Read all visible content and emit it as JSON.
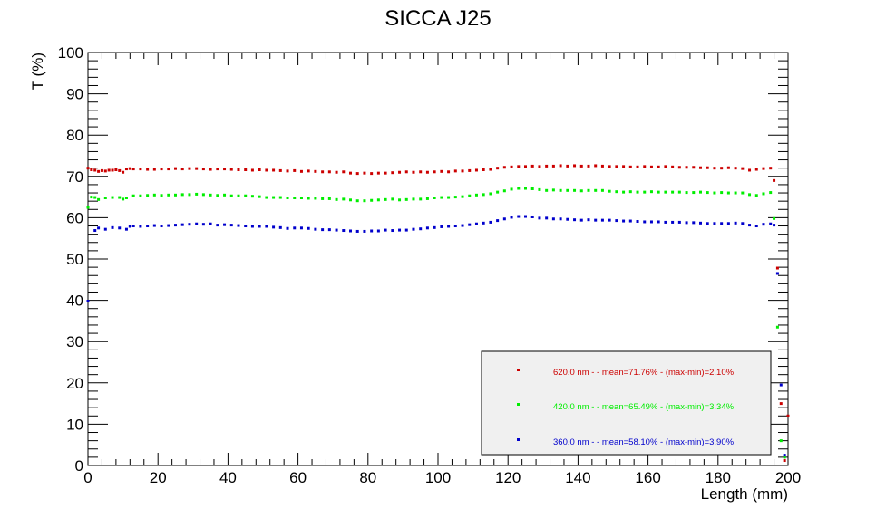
{
  "chart_data": {
    "type": "scatter",
    "title": "SICCA J25",
    "xlabel": "Length (mm)",
    "ylabel": "T (%)",
    "xlim": [
      0,
      200
    ],
    "ylim": [
      0,
      100
    ],
    "xticks": [
      0,
      20,
      40,
      60,
      80,
      100,
      120,
      140,
      160,
      180,
      200
    ],
    "yticks": [
      0,
      10,
      20,
      30,
      40,
      50,
      60,
      70,
      80,
      90,
      100
    ],
    "grid": false,
    "legend_position": "bottom-right",
    "series": [
      {
        "name": "620.0 nm -  - mean=71.76% - (max-min)=2.10%",
        "color": "#cc0000",
        "points": [
          [
            0,
            72.0
          ],
          [
            1,
            71.6
          ],
          [
            2,
            71.5
          ],
          [
            3,
            71.2
          ],
          [
            4,
            71.4
          ],
          [
            5,
            71.3
          ],
          [
            6,
            71.5
          ],
          [
            7,
            71.5
          ],
          [
            8,
            71.6
          ],
          [
            9,
            71.4
          ],
          [
            10,
            71.0
          ],
          [
            11,
            71.8
          ],
          [
            12,
            71.9
          ],
          [
            13,
            71.8
          ],
          [
            15,
            71.8
          ],
          [
            17,
            71.7
          ],
          [
            19,
            71.7
          ],
          [
            21,
            71.8
          ],
          [
            23,
            71.8
          ],
          [
            25,
            71.9
          ],
          [
            27,
            71.8
          ],
          [
            29,
            71.9
          ],
          [
            31,
            71.9
          ],
          [
            33,
            71.8
          ],
          [
            35,
            71.7
          ],
          [
            37,
            71.8
          ],
          [
            39,
            71.8
          ],
          [
            41,
            71.7
          ],
          [
            43,
            71.6
          ],
          [
            45,
            71.6
          ],
          [
            47,
            71.5
          ],
          [
            49,
            71.6
          ],
          [
            51,
            71.5
          ],
          [
            53,
            71.5
          ],
          [
            55,
            71.4
          ],
          [
            57,
            71.3
          ],
          [
            59,
            71.4
          ],
          [
            61,
            71.2
          ],
          [
            63,
            71.3
          ],
          [
            65,
            71.2
          ],
          [
            67,
            71.1
          ],
          [
            69,
            71.1
          ],
          [
            71,
            71.0
          ],
          [
            73,
            71.1
          ],
          [
            75,
            70.8
          ],
          [
            77,
            70.7
          ],
          [
            79,
            70.8
          ],
          [
            81,
            70.7
          ],
          [
            83,
            70.8
          ],
          [
            85,
            70.8
          ],
          [
            87,
            70.9
          ],
          [
            89,
            71.0
          ],
          [
            91,
            71.1
          ],
          [
            93,
            71.0
          ],
          [
            95,
            71.1
          ],
          [
            97,
            71.0
          ],
          [
            99,
            71.1
          ],
          [
            101,
            71.2
          ],
          [
            103,
            71.1
          ],
          [
            105,
            71.3
          ],
          [
            107,
            71.3
          ],
          [
            109,
            71.4
          ],
          [
            111,
            71.5
          ],
          [
            113,
            71.6
          ],
          [
            115,
            71.7
          ],
          [
            117,
            72.0
          ],
          [
            119,
            72.2
          ],
          [
            121,
            72.3
          ],
          [
            123,
            72.4
          ],
          [
            125,
            72.4
          ],
          [
            127,
            72.5
          ],
          [
            129,
            72.4
          ],
          [
            131,
            72.5
          ],
          [
            133,
            72.5
          ],
          [
            135,
            72.6
          ],
          [
            137,
            72.5
          ],
          [
            139,
            72.6
          ],
          [
            141,
            72.5
          ],
          [
            143,
            72.5
          ],
          [
            145,
            72.6
          ],
          [
            147,
            72.5
          ],
          [
            149,
            72.4
          ],
          [
            151,
            72.4
          ],
          [
            153,
            72.4
          ],
          [
            155,
            72.3
          ],
          [
            157,
            72.3
          ],
          [
            159,
            72.4
          ],
          [
            161,
            72.3
          ],
          [
            163,
            72.3
          ],
          [
            165,
            72.4
          ],
          [
            167,
            72.3
          ],
          [
            169,
            72.2
          ],
          [
            171,
            72.2
          ],
          [
            173,
            72.2
          ],
          [
            175,
            72.1
          ],
          [
            177,
            72.1
          ],
          [
            179,
            72.0
          ],
          [
            181,
            72.0
          ],
          [
            183,
            72.1
          ],
          [
            185,
            72.0
          ],
          [
            187,
            71.9
          ],
          [
            189,
            71.5
          ],
          [
            191,
            71.7
          ],
          [
            193,
            71.9
          ],
          [
            195,
            72.0
          ],
          [
            196,
            69.0
          ],
          [
            197,
            47.8
          ],
          [
            198,
            15.0
          ],
          [
            199,
            1.2
          ],
          [
            200,
            12.0
          ]
        ]
      },
      {
        "name": "420.0 nm -  - mean=65.49% - (max-min)=3.34%",
        "color": "#00ee00",
        "points": [
          [
            0,
            62.5
          ],
          [
            1,
            65.0
          ],
          [
            2,
            64.9
          ],
          [
            3,
            64.4
          ],
          [
            5,
            64.8
          ],
          [
            7,
            64.9
          ],
          [
            9,
            64.9
          ],
          [
            10,
            64.5
          ],
          [
            11,
            64.8
          ],
          [
            13,
            65.3
          ],
          [
            15,
            65.3
          ],
          [
            17,
            65.4
          ],
          [
            19,
            65.5
          ],
          [
            21,
            65.4
          ],
          [
            23,
            65.5
          ],
          [
            25,
            65.5
          ],
          [
            27,
            65.6
          ],
          [
            29,
            65.6
          ],
          [
            31,
            65.7
          ],
          [
            33,
            65.6
          ],
          [
            35,
            65.5
          ],
          [
            37,
            65.4
          ],
          [
            39,
            65.5
          ],
          [
            41,
            65.3
          ],
          [
            43,
            65.3
          ],
          [
            45,
            65.3
          ],
          [
            47,
            65.2
          ],
          [
            49,
            65.1
          ],
          [
            51,
            64.9
          ],
          [
            53,
            64.9
          ],
          [
            55,
            64.9
          ],
          [
            57,
            64.8
          ],
          [
            59,
            64.8
          ],
          [
            61,
            64.8
          ],
          [
            63,
            64.7
          ],
          [
            65,
            64.7
          ],
          [
            67,
            64.6
          ],
          [
            69,
            64.6
          ],
          [
            71,
            64.4
          ],
          [
            73,
            64.5
          ],
          [
            75,
            64.3
          ],
          [
            77,
            64.1
          ],
          [
            79,
            64.1
          ],
          [
            81,
            64.2
          ],
          [
            83,
            64.3
          ],
          [
            85,
            64.4
          ],
          [
            87,
            64.5
          ],
          [
            89,
            64.3
          ],
          [
            91,
            64.4
          ],
          [
            93,
            64.5
          ],
          [
            95,
            64.5
          ],
          [
            97,
            64.6
          ],
          [
            99,
            64.8
          ],
          [
            101,
            64.9
          ],
          [
            103,
            64.9
          ],
          [
            105,
            65.0
          ],
          [
            107,
            65.1
          ],
          [
            109,
            65.3
          ],
          [
            111,
            65.5
          ],
          [
            113,
            65.6
          ],
          [
            115,
            65.8
          ],
          [
            117,
            66.2
          ],
          [
            119,
            66.5
          ],
          [
            121,
            66.9
          ],
          [
            123,
            67.1
          ],
          [
            125,
            67.1
          ],
          [
            127,
            67.0
          ],
          [
            129,
            66.8
          ],
          [
            131,
            66.6
          ],
          [
            133,
            66.7
          ],
          [
            135,
            66.6
          ],
          [
            137,
            66.6
          ],
          [
            139,
            66.6
          ],
          [
            141,
            66.5
          ],
          [
            143,
            66.6
          ],
          [
            145,
            66.6
          ],
          [
            147,
            66.6
          ],
          [
            149,
            66.4
          ],
          [
            151,
            66.3
          ],
          [
            153,
            66.2
          ],
          [
            155,
            66.3
          ],
          [
            157,
            66.2
          ],
          [
            159,
            66.2
          ],
          [
            161,
            66.3
          ],
          [
            163,
            66.2
          ],
          [
            165,
            66.2
          ],
          [
            167,
            66.2
          ],
          [
            169,
            66.2
          ],
          [
            171,
            66.1
          ],
          [
            173,
            66.1
          ],
          [
            175,
            66.2
          ],
          [
            177,
            66.1
          ],
          [
            179,
            66.0
          ],
          [
            181,
            66.1
          ],
          [
            183,
            66.0
          ],
          [
            185,
            66.0
          ],
          [
            187,
            66.0
          ],
          [
            189,
            65.6
          ],
          [
            191,
            65.4
          ],
          [
            193,
            65.8
          ],
          [
            195,
            66.1
          ],
          [
            196,
            59.8
          ],
          [
            197,
            33.5
          ],
          [
            198,
            6.0
          ],
          [
            199,
            2.0
          ]
        ]
      },
      {
        "name": "360.0 nm -  - mean=58.10% - (max-min)=3.90%",
        "color": "#0000cc",
        "points": [
          [
            0,
            39.8
          ],
          [
            2,
            56.9
          ],
          [
            3,
            57.5
          ],
          [
            5,
            57.2
          ],
          [
            7,
            57.6
          ],
          [
            9,
            57.5
          ],
          [
            11,
            57.2
          ],
          [
            12,
            57.9
          ],
          [
            13,
            58.0
          ],
          [
            15,
            57.9
          ],
          [
            17,
            58.0
          ],
          [
            19,
            58.1
          ],
          [
            21,
            58.0
          ],
          [
            23,
            58.1
          ],
          [
            25,
            58.2
          ],
          [
            27,
            58.3
          ],
          [
            29,
            58.4
          ],
          [
            31,
            58.5
          ],
          [
            33,
            58.4
          ],
          [
            35,
            58.5
          ],
          [
            37,
            58.2
          ],
          [
            39,
            58.3
          ],
          [
            41,
            58.2
          ],
          [
            43,
            58.1
          ],
          [
            45,
            58.0
          ],
          [
            47,
            57.9
          ],
          [
            49,
            57.9
          ],
          [
            51,
            57.9
          ],
          [
            53,
            57.7
          ],
          [
            55,
            57.6
          ],
          [
            57,
            57.4
          ],
          [
            59,
            57.5
          ],
          [
            61,
            57.5
          ],
          [
            63,
            57.4
          ],
          [
            65,
            57.2
          ],
          [
            67,
            57.1
          ],
          [
            69,
            57.1
          ],
          [
            71,
            57.0
          ],
          [
            73,
            56.9
          ],
          [
            75,
            56.8
          ],
          [
            77,
            56.7
          ],
          [
            79,
            56.7
          ],
          [
            81,
            56.8
          ],
          [
            83,
            56.8
          ],
          [
            85,
            57.0
          ],
          [
            87,
            56.9
          ],
          [
            89,
            57.0
          ],
          [
            91,
            57.0
          ],
          [
            93,
            57.2
          ],
          [
            95,
            57.3
          ],
          [
            97,
            57.5
          ],
          [
            99,
            57.6
          ],
          [
            101,
            57.8
          ],
          [
            103,
            57.9
          ],
          [
            105,
            58.0
          ],
          [
            107,
            58.1
          ],
          [
            109,
            58.3
          ],
          [
            111,
            58.5
          ],
          [
            113,
            58.7
          ],
          [
            115,
            58.9
          ],
          [
            117,
            59.3
          ],
          [
            119,
            59.7
          ],
          [
            121,
            60.1
          ],
          [
            123,
            60.3
          ],
          [
            125,
            60.3
          ],
          [
            127,
            60.2
          ],
          [
            129,
            59.9
          ],
          [
            131,
            59.9
          ],
          [
            133,
            59.7
          ],
          [
            135,
            59.7
          ],
          [
            137,
            59.6
          ],
          [
            139,
            59.5
          ],
          [
            141,
            59.4
          ],
          [
            143,
            59.5
          ],
          [
            145,
            59.4
          ],
          [
            147,
            59.4
          ],
          [
            149,
            59.4
          ],
          [
            151,
            59.3
          ],
          [
            153,
            59.2
          ],
          [
            155,
            59.2
          ],
          [
            157,
            59.1
          ],
          [
            159,
            59.0
          ],
          [
            161,
            59.0
          ],
          [
            163,
            59.0
          ],
          [
            165,
            58.9
          ],
          [
            167,
            58.9
          ],
          [
            169,
            58.9
          ],
          [
            171,
            58.8
          ],
          [
            173,
            58.8
          ],
          [
            175,
            58.7
          ],
          [
            177,
            58.6
          ],
          [
            179,
            58.6
          ],
          [
            181,
            58.6
          ],
          [
            183,
            58.6
          ],
          [
            185,
            58.7
          ],
          [
            187,
            58.6
          ],
          [
            189,
            58.2
          ],
          [
            191,
            58.0
          ],
          [
            193,
            58.4
          ],
          [
            195,
            58.5
          ],
          [
            196,
            58.2
          ],
          [
            197,
            46.5
          ],
          [
            198,
            19.5
          ],
          [
            199,
            2.5
          ]
        ]
      }
    ]
  }
}
